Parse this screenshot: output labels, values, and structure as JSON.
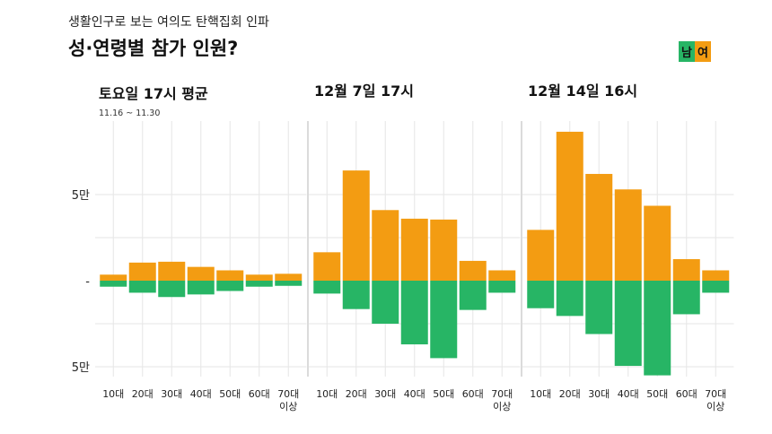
{
  "header": {
    "subtitle": "생활인구로 보는 여의도 탄핵집회 인파",
    "title": "성·연령별 참가 인원?"
  },
  "legend": [
    {
      "label": "남",
      "color": "#27b565"
    },
    {
      "label": "여",
      "color": "#f39c12"
    }
  ],
  "colors": {
    "male": "#27b565",
    "female": "#f39c12",
    "grid": "#e6e6e6",
    "divider": "#cfcfcf"
  },
  "y_axis": {
    "labels": [
      "5만",
      "-",
      "5만"
    ]
  },
  "chart_data": {
    "type": "bar",
    "subtype": "diverging-stacked",
    "unit": "persons",
    "ylim": [
      -55000,
      85000
    ],
    "categories": [
      "10대",
      "20대",
      "30대",
      "40대",
      "50대",
      "60대",
      "70대 이상"
    ],
    "category_labels": [
      [
        "10대"
      ],
      [
        "20대"
      ],
      [
        "30대"
      ],
      [
        "40대"
      ],
      [
        "50대"
      ],
      [
        "60대"
      ],
      [
        "70대",
        "이상"
      ]
    ],
    "panels": [
      {
        "title": "토요일 17시 평균",
        "subtitle": "11.16 ~ 11.30",
        "series": [
          {
            "name": "여",
            "values": [
              3500,
              10500,
              11000,
              8000,
              6000,
              3500,
              4000
            ]
          },
          {
            "name": "남",
            "values": [
              -3500,
              -7000,
              -9500,
              -8000,
              -6000,
              -3500,
              -3000
            ]
          }
        ]
      },
      {
        "title": "12월 7일 17시",
        "subtitle": "",
        "series": [
          {
            "name": "여",
            "values": [
              16500,
              64000,
              41000,
              36000,
              35500,
              11500,
              6000
            ]
          },
          {
            "name": "남",
            "values": [
              -7500,
              -16500,
              -25000,
              -37000,
              -45000,
              -17000,
              -7000
            ]
          }
        ]
      },
      {
        "title": "12월 14일 16시",
        "subtitle": "",
        "series": [
          {
            "name": "여",
            "values": [
              29500,
              86500,
              62000,
              53000,
              43500,
              12500,
              6000
            ]
          },
          {
            "name": "남",
            "values": [
              -16000,
              -20500,
              -31000,
              -49500,
              -55000,
              -19500,
              -7000
            ]
          }
        ]
      }
    ]
  }
}
